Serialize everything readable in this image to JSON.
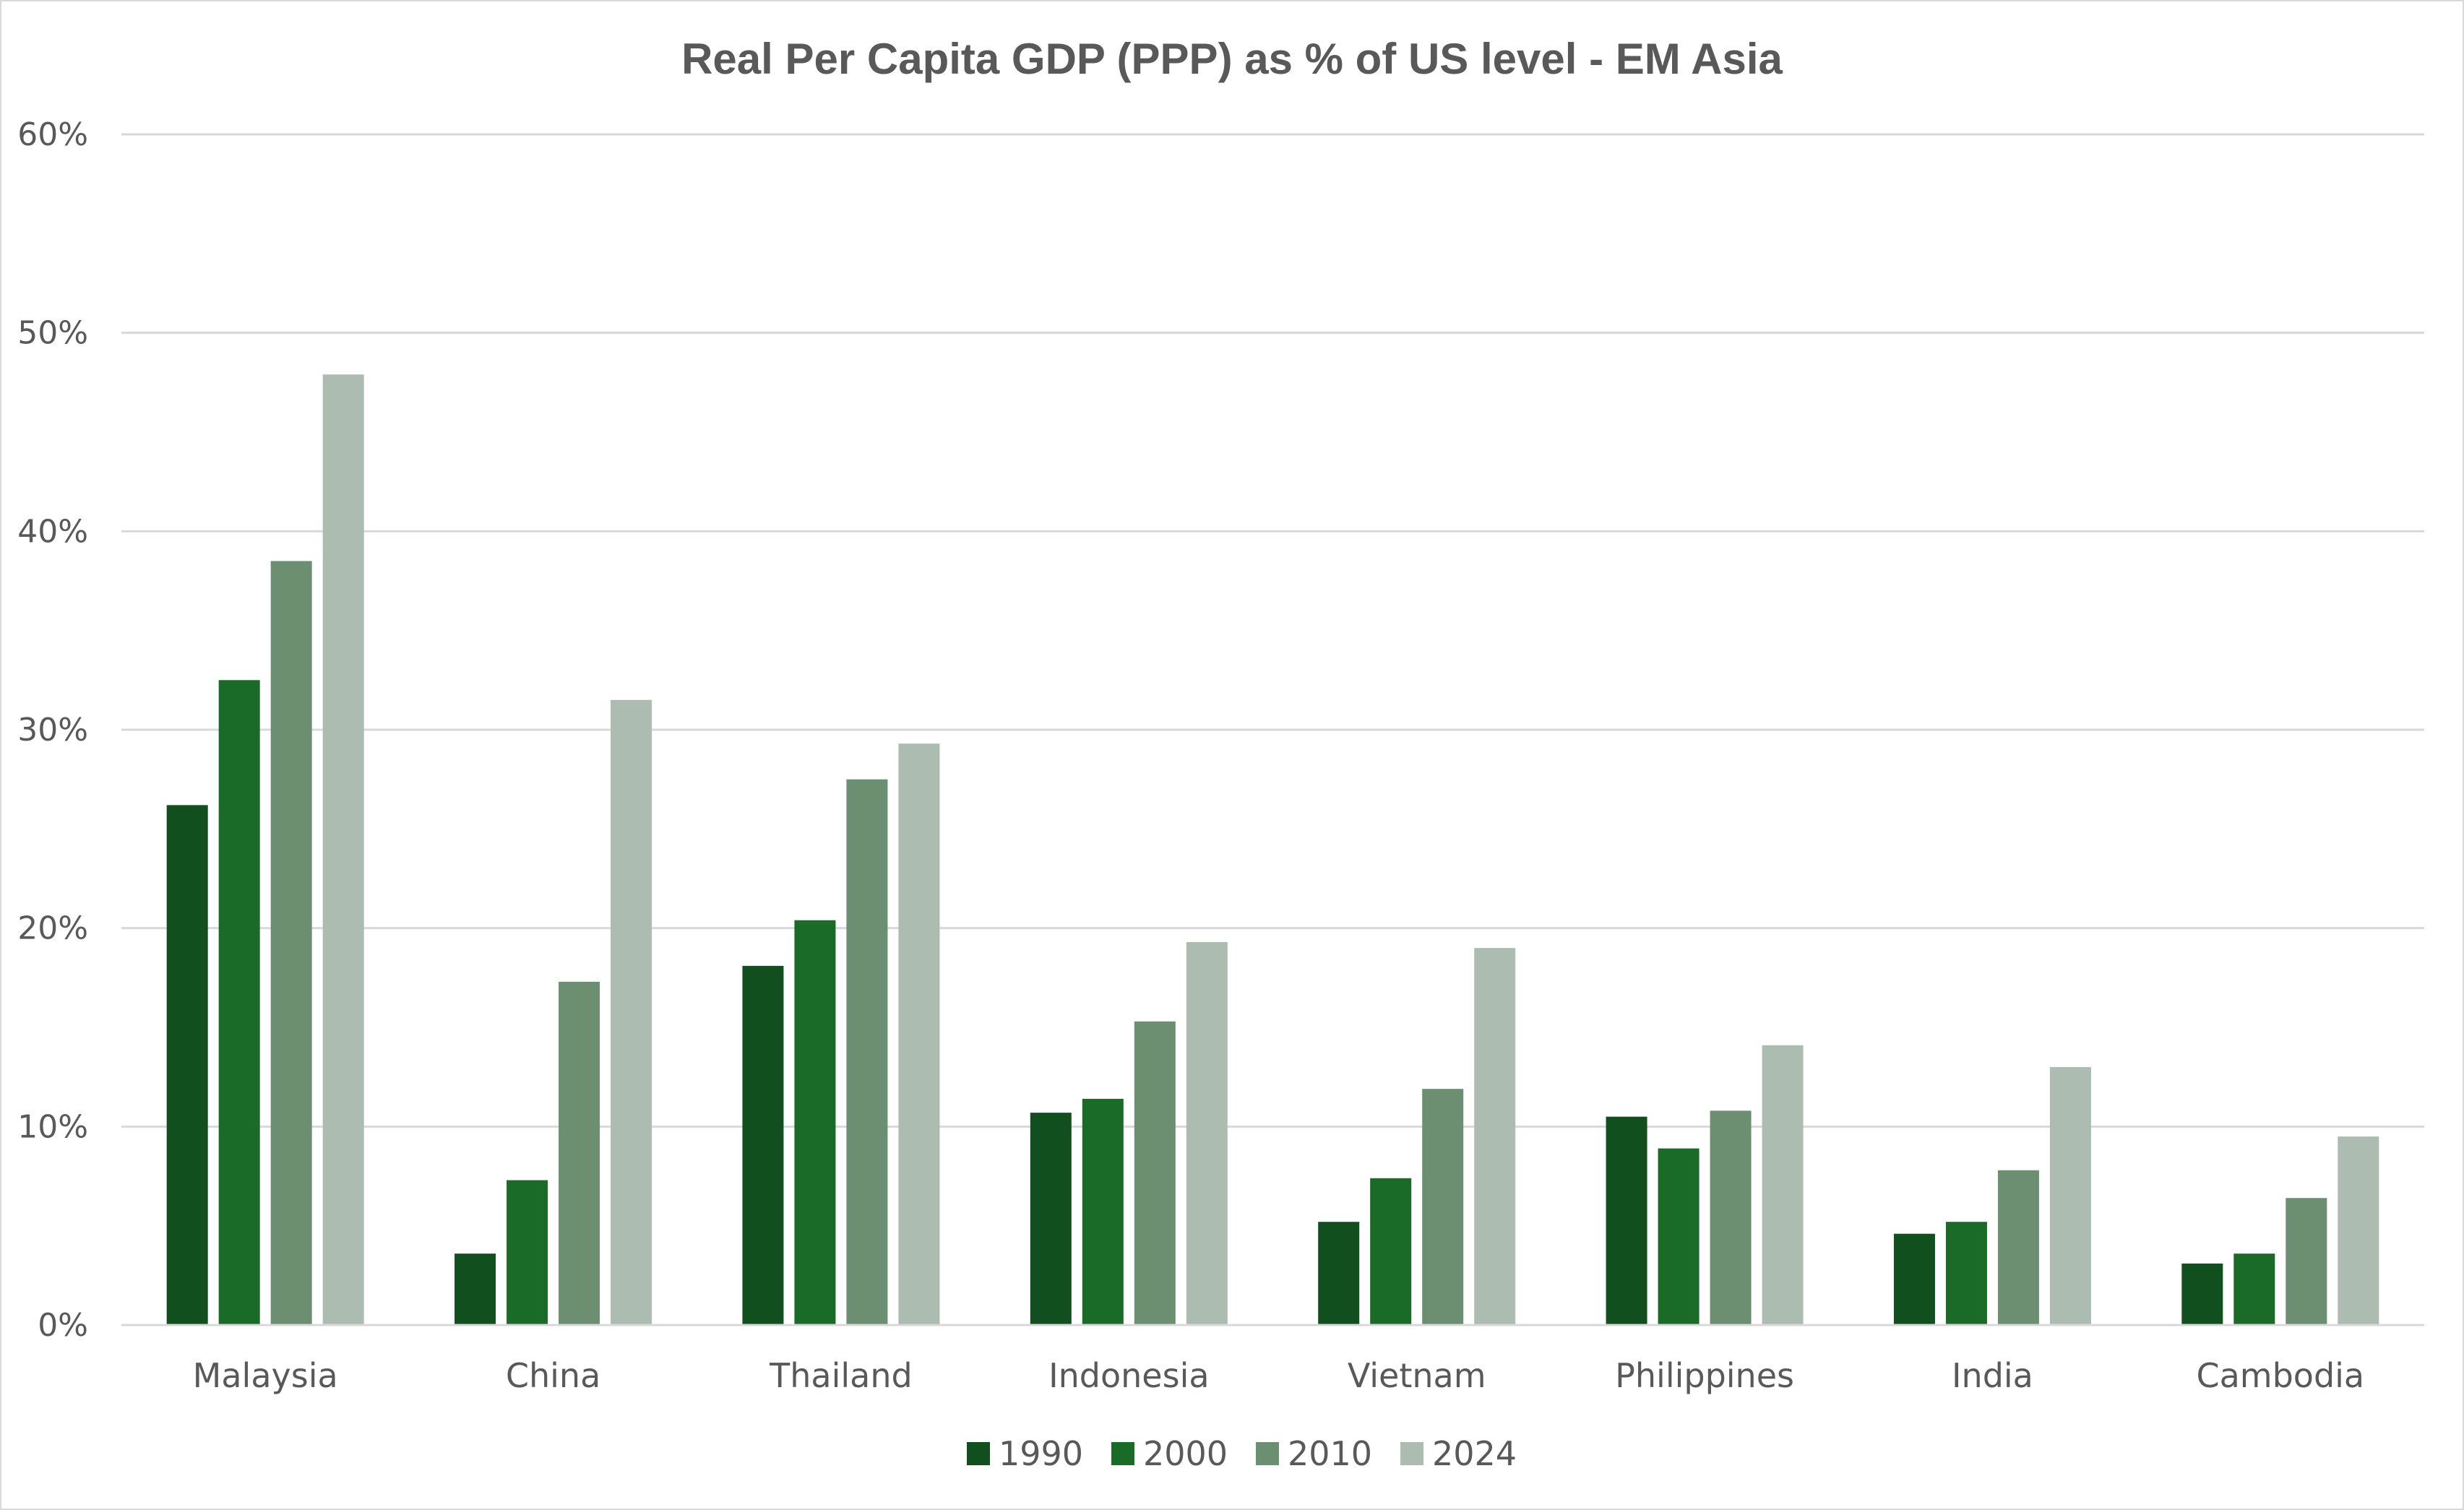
{
  "chart_data": {
    "type": "bar",
    "title": "Real Per Capita GDP (PPP) as % of US level - EM Asia",
    "xlabel": "",
    "ylabel": "",
    "ylim": [
      0,
      60
    ],
    "yticks": [
      0,
      10,
      20,
      30,
      40,
      50,
      60
    ],
    "ytick_labels": [
      "0%",
      "10%",
      "20%",
      "30%",
      "40%",
      "50%",
      "60%"
    ],
    "grid": true,
    "legend_position": "bottom",
    "categories": [
      "Malaysia",
      "China",
      "Thailand",
      "Indonesia",
      "Vietnam",
      "Philippines",
      "India",
      "Cambodia"
    ],
    "series": [
      {
        "name": "1990",
        "color": "#124f1e",
        "values": [
          26.2,
          3.6,
          18.1,
          10.7,
          5.2,
          10.5,
          4.6,
          3.1
        ]
      },
      {
        "name": "2000",
        "color": "#1a6b27",
        "values": [
          32.5,
          7.3,
          20.4,
          11.4,
          7.4,
          8.9,
          5.2,
          3.6
        ]
      },
      {
        "name": "2010",
        "color": "#6c8f71",
        "values": [
          38.5,
          17.3,
          27.5,
          15.3,
          11.9,
          10.8,
          7.8,
          6.4
        ]
      },
      {
        "name": "2024",
        "color": "#acbcb0",
        "values": [
          47.9,
          31.5,
          29.3,
          19.3,
          19.0,
          14.1,
          13.0,
          9.5
        ]
      }
    ]
  }
}
